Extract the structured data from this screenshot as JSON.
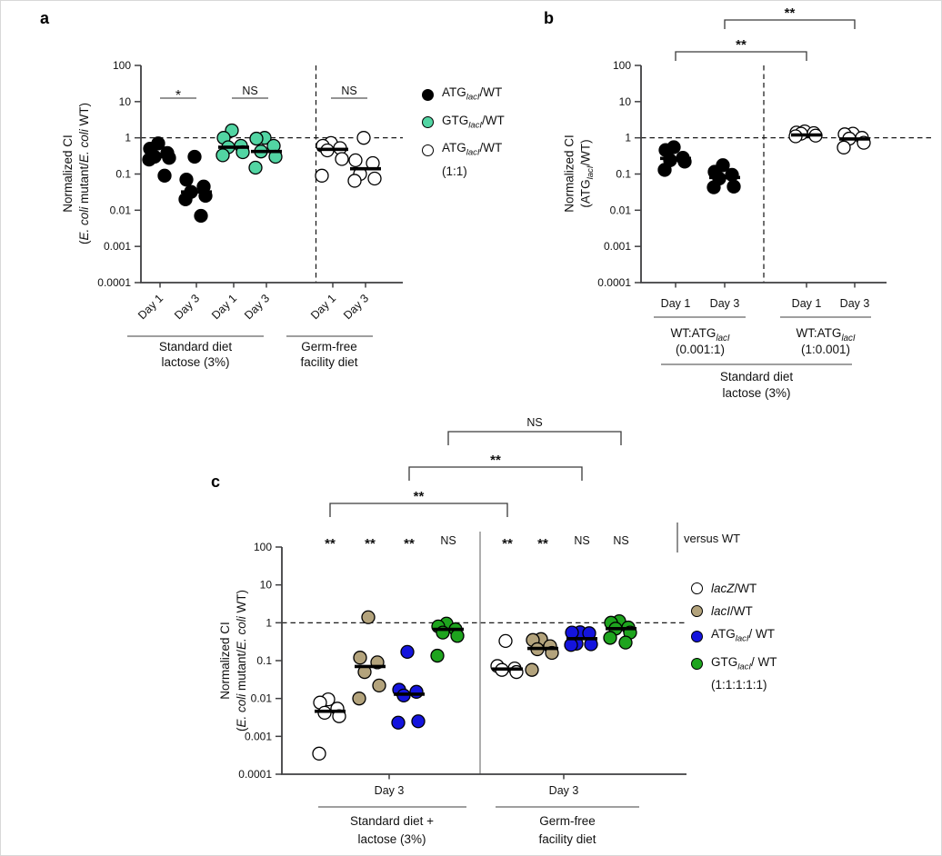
{
  "chart_data": [
    {
      "id": "a",
      "type": "scatter",
      "panel_label": "a",
      "yscale": "log",
      "ylim": [
        0.0001,
        100
      ],
      "yticks": [
        "100",
        "10",
        "1",
        "0.1",
        "0.01",
        "0.001",
        "0.0001"
      ],
      "ref_line": 1,
      "ylabel_line1": "Normalized CI",
      "ylabel_line2": [
        {
          "t": "("
        },
        {
          "t": "E. coli",
          "s": "i"
        },
        {
          "t": " mutant/"
        },
        {
          "t": "E. coli",
          "s": "i"
        },
        {
          "t": " WT)"
        }
      ],
      "x_tick_labels": [
        "Day 1",
        "Day 3",
        "Day 1",
        "Day 3",
        "Day 1",
        "Day 3"
      ],
      "groups": [
        {
          "series": "ATG-lacI/WT",
          "day": "Day 1",
          "color": "#000000",
          "open": false,
          "values": [
            0.7,
            0.5,
            0.38,
            0.3,
            0.28,
            0.25,
            0.09
          ],
          "median": 0.3
        },
        {
          "series": "ATG-lacI/WT",
          "day": "Day 3",
          "color": "#000000",
          "open": false,
          "values": [
            0.3,
            0.07,
            0.045,
            0.032,
            0.025,
            0.02,
            0.007
          ],
          "median": 0.032
        },
        {
          "series": "GTG-lacI/WT",
          "day": "Day 1",
          "color": "#52d5a3",
          "open": false,
          "values": [
            1.6,
            1.0,
            0.6,
            0.55,
            0.4,
            0.33
          ],
          "median": 0.55
        },
        {
          "series": "GTG-lacI/WT",
          "day": "Day 3",
          "color": "#52d5a3",
          "open": false,
          "values": [
            1.0,
            0.95,
            0.6,
            0.42,
            0.3,
            0.15
          ],
          "median": 0.42
        },
        {
          "series": "ATG-lacI/WT (1:1)",
          "day": "Day 1",
          "color": "#ffffff",
          "open": true,
          "values": [
            0.72,
            0.6,
            0.52,
            0.45,
            0.26,
            0.09
          ],
          "median": 0.48
        },
        {
          "series": "ATG-lacI/WT (1:1)",
          "day": "Day 3",
          "color": "#ffffff",
          "open": true,
          "values": [
            1.0,
            0.24,
            0.2,
            0.1,
            0.075,
            0.065
          ],
          "median": 0.14
        }
      ],
      "pair_significance": [
        {
          "label": "*",
          "cols": [
            0,
            1
          ]
        },
        {
          "label": "NS",
          "cols": [
            2,
            3
          ]
        },
        {
          "label": "NS",
          "cols": [
            4,
            5
          ]
        }
      ],
      "x_groups": [
        {
          "label_lines": [
            "Standard diet",
            "lactose (3%)"
          ],
          "cols": [
            0,
            3
          ]
        },
        {
          "label_lines": [
            "Germ-free",
            "facility diet"
          ],
          "cols": [
            4,
            5
          ]
        }
      ],
      "legend": [
        {
          "color": "#000000",
          "open": false,
          "label": [
            {
              "t": "ATG"
            },
            {
              "t": "lacI",
              "s": "subi"
            },
            {
              "t": "/WT"
            }
          ]
        },
        {
          "color": "#52d5a3",
          "open": false,
          "label": [
            {
              "t": "GTG"
            },
            {
              "t": "lacI",
              "s": "subi"
            },
            {
              "t": "/WT"
            }
          ]
        },
        {
          "color": "#ffffff",
          "open": true,
          "label": [
            {
              "t": "ATG"
            },
            {
              "t": "lacI",
              "s": "subi"
            },
            {
              "t": "/WT"
            }
          ],
          "label2": "(1:1)"
        }
      ]
    },
    {
      "id": "b",
      "type": "scatter",
      "panel_label": "b",
      "yscale": "log",
      "ylim": [
        0.0001,
        100
      ],
      "yticks": [
        "100",
        "10",
        "1",
        "0.1",
        "0.01",
        "0.001",
        "0.0001"
      ],
      "ref_line": 1,
      "ylabel_line1": "Normalized CI",
      "ylabel_line2": [
        {
          "t": "(ATG"
        },
        {
          "t": "lacI",
          "s": "subi"
        },
        {
          "t": "/WT)"
        }
      ],
      "x_tick_labels": [
        "Day 1",
        "Day 3",
        "Day 1",
        "Day 3"
      ],
      "groups": [
        {
          "ratio_group": "WT:ATG-lacI (0.001:1)",
          "day": "Day 1",
          "color": "#000000",
          "open": false,
          "values": [
            0.55,
            0.46,
            0.28,
            0.24,
            0.22,
            0.13
          ],
          "median": 0.27
        },
        {
          "ratio_group": "WT:ATG-lacI (0.001:1)",
          "day": "Day 3",
          "color": "#000000",
          "open": false,
          "values": [
            0.175,
            0.115,
            0.095,
            0.075,
            0.045,
            0.043
          ],
          "median": 0.08
        },
        {
          "ratio_group": "WT:ATG-lacI (1:0.001)",
          "day": "Day 1",
          "color": "#ffffff",
          "open": true,
          "values": [
            1.5,
            1.4,
            1.35,
            1.3,
            1.15,
            1.1
          ],
          "median": 1.2
        },
        {
          "ratio_group": "WT:ATG-lacI (1:0.001)",
          "day": "Day 3",
          "color": "#ffffff",
          "open": true,
          "values": [
            1.3,
            1.25,
            1.0,
            0.95,
            0.73,
            0.54
          ],
          "median": 0.93
        }
      ],
      "brackets": [
        {
          "label": "**",
          "from_col": 0,
          "to_col": 2,
          "level": 0
        },
        {
          "label": "**",
          "from_col": 1,
          "to_col": 3,
          "level": 1
        }
      ],
      "x_groups": [
        {
          "label": [
            {
              "t": "WT:ATG"
            },
            {
              "t": "lacI",
              "s": "subi"
            }
          ],
          "ratio": "(0.001:1)",
          "cols": [
            0,
            1
          ]
        },
        {
          "label": [
            {
              "t": "WT:ATG"
            },
            {
              "t": "lacI",
              "s": "subi"
            }
          ],
          "ratio": "(1:0.001)",
          "cols": [
            2,
            3
          ]
        }
      ],
      "super_group": {
        "label_lines": [
          "Standard diet",
          "lactose (3%)"
        ]
      }
    },
    {
      "id": "c",
      "type": "scatter",
      "panel_label": "c",
      "yscale": "log",
      "ylim": [
        0.0001,
        100
      ],
      "yticks": [
        "100",
        "10",
        "1",
        "0.1",
        "0.01",
        "0.001",
        "0.0001"
      ],
      "ref_line": 1,
      "ylabel_line1": "Normalized CI",
      "ylabel_line2": [
        {
          "t": "("
        },
        {
          "t": "E. coli",
          "s": "i"
        },
        {
          "t": " mutant/"
        },
        {
          "t": "E. coli",
          "s": "i"
        },
        {
          "t": " WT)"
        }
      ],
      "col_significance": [
        "**",
        "**",
        "**",
        "NS",
        "**",
        "**",
        "NS",
        "NS"
      ],
      "versus_label": "versus WT",
      "groups": [
        {
          "series": "lacZ/WT",
          "diet": "Standard diet + lactose (3%)",
          "color": "#ffffff",
          "open": true,
          "values": [
            0.0095,
            0.0078,
            0.0054,
            0.0042,
            0.0034,
            0.00035
          ],
          "median": 0.0046
        },
        {
          "series": "lacI/WT",
          "diet": "Standard diet + lactose (3%)",
          "color": "#b3a37c",
          "open": false,
          "values": [
            1.4,
            0.12,
            0.09,
            0.05,
            0.022,
            0.01
          ],
          "median": 0.07
        },
        {
          "series": "ATG-lacI/WT",
          "diet": "Standard diet + lactose (3%)",
          "color": "#1414dd",
          "open": false,
          "values": [
            0.17,
            0.017,
            0.015,
            0.012,
            0.0025,
            0.0023
          ],
          "median": 0.013
        },
        {
          "series": "GTG-lacI/WT",
          "diet": "Standard diet + lactose (3%)",
          "color": "#1ea41e",
          "open": false,
          "values": [
            0.95,
            0.8,
            0.67,
            0.55,
            0.45,
            0.135
          ],
          "median": 0.67
        },
        {
          "series": "lacZ/WT",
          "diet": "Germ-free facility diet",
          "color": "#ffffff",
          "open": true,
          "values": [
            0.33,
            0.072,
            0.062,
            0.057,
            0.05
          ],
          "median": 0.06
        },
        {
          "series": "lacI/WT",
          "diet": "Germ-free facility diet",
          "color": "#b3a37c",
          "open": false,
          "values": [
            0.37,
            0.35,
            0.24,
            0.2,
            0.16,
            0.057
          ],
          "median": 0.21
        },
        {
          "series": "ATG-lacI/WT",
          "diet": "Germ-free facility diet",
          "color": "#1414dd",
          "open": false,
          "values": [
            0.56,
            0.55,
            0.53,
            0.28,
            0.27,
            0.26
          ],
          "median": 0.38
        },
        {
          "series": "GTG-lacI/WT",
          "diet": "Germ-free facility diet",
          "color": "#1ea41e",
          "open": false,
          "values": [
            1.1,
            1.0,
            0.75,
            0.7,
            0.55,
            0.4,
            0.3
          ],
          "median": 0.7
        }
      ],
      "brackets": [
        {
          "label": "**",
          "from_col": 0,
          "to_col": 4,
          "level": 0
        },
        {
          "label": "**",
          "from_col": 2,
          "to_col": 6,
          "level": 1
        },
        {
          "label": "NS",
          "from_col": 3,
          "to_col": 7,
          "level": 2
        }
      ],
      "x_groups": [
        {
          "tick_label": "Day 3",
          "label_lines": [
            "Standard diet +",
            "lactose (3%)"
          ],
          "cols": [
            0,
            3
          ]
        },
        {
          "tick_label": "Day 3",
          "label_lines": [
            "Germ-free",
            "facility diet"
          ],
          "cols": [
            4,
            7
          ]
        }
      ],
      "legend": [
        {
          "color": "#ffffff",
          "open": true,
          "label": [
            {
              "t": "lacZ",
              "s": "i"
            },
            {
              "t": "/WT"
            }
          ]
        },
        {
          "color": "#b3a37c",
          "open": false,
          "label": [
            {
              "t": "lacI",
              "s": "i"
            },
            {
              "t": "/WT"
            }
          ]
        },
        {
          "color": "#1414dd",
          "open": false,
          "label": [
            {
              "t": "ATG"
            },
            {
              "t": "lacI",
              "s": "subi"
            },
            {
              "t": "/ WT"
            }
          ]
        },
        {
          "color": "#1ea41e",
          "open": false,
          "label": [
            {
              "t": "GTG"
            },
            {
              "t": "lacI",
              "s": "subi"
            },
            {
              "t": "/ WT"
            }
          ],
          "label2": "(1:1:1:1:1)"
        }
      ]
    }
  ]
}
